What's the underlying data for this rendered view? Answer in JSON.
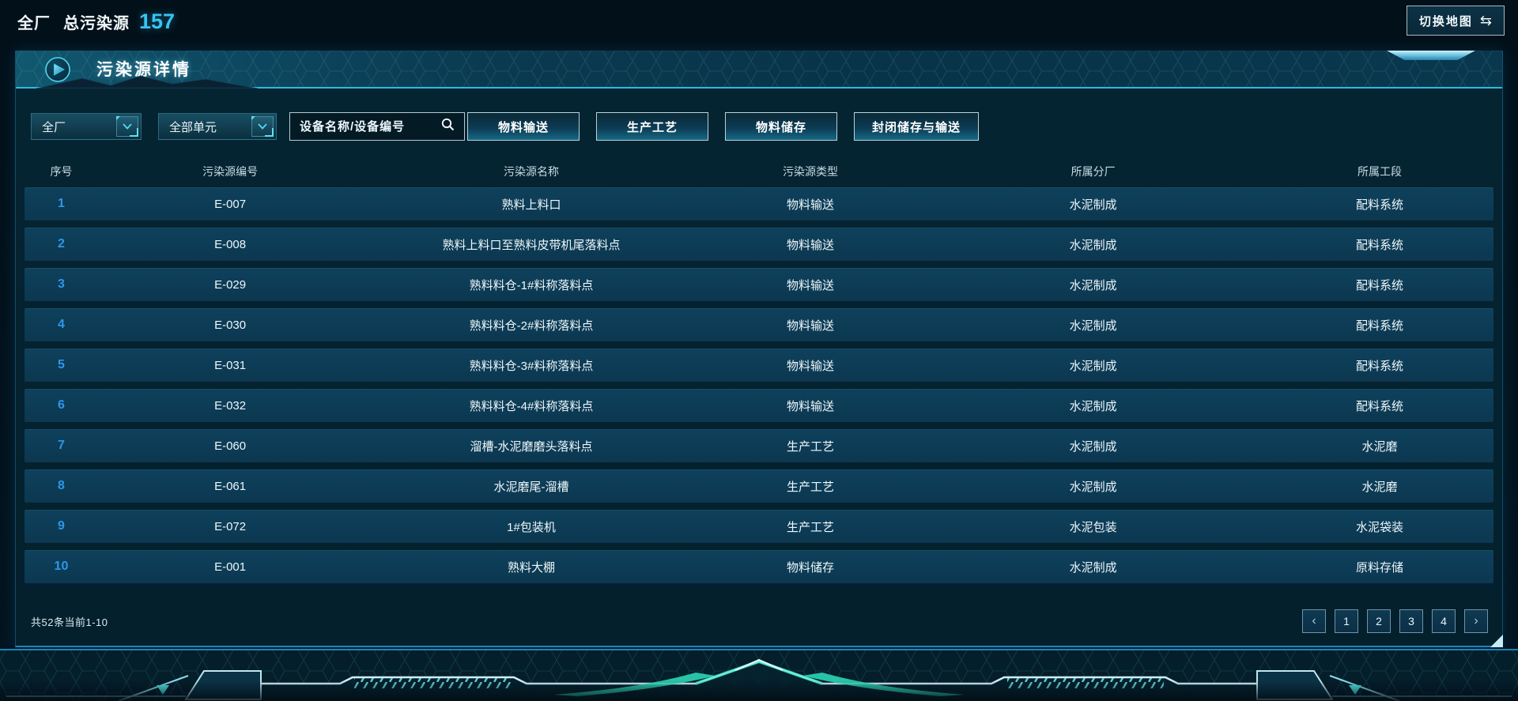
{
  "top_bar": {
    "scope_label": "全厂",
    "total_label": "总污染源",
    "total_value": "157",
    "switch_map_label": "切换地图",
    "switch_map_icon": "⇆"
  },
  "panel": {
    "title": "污染源详情",
    "filters": {
      "plant_dropdown_value": "全厂",
      "unit_dropdown_value": "全部单元",
      "search_placeholder": "设备名称/设备编号",
      "type_buttons": [
        "物料输送",
        "生产工艺",
        "物料储存",
        "封闭储存与输送"
      ]
    },
    "table": {
      "columns": [
        "序号",
        "污染源编号",
        "污染源名称",
        "污染源类型",
        "所属分厂",
        "所属工段"
      ],
      "rows": [
        [
          "1",
          "E-007",
          "熟料上料口",
          "物料输送",
          "水泥制成",
          "配料系统"
        ],
        [
          "2",
          "E-008",
          "熟料上料口至熟料皮带机尾落料点",
          "物料输送",
          "水泥制成",
          "配料系统"
        ],
        [
          "3",
          "E-029",
          "熟料料仓-1#料称落料点",
          "物料输送",
          "水泥制成",
          "配料系统"
        ],
        [
          "4",
          "E-030",
          "熟料料仓-2#料称落料点",
          "物料输送",
          "水泥制成",
          "配料系统"
        ],
        [
          "5",
          "E-031",
          "熟料料仓-3#料称落料点",
          "物料输送",
          "水泥制成",
          "配料系统"
        ],
        [
          "6",
          "E-032",
          "熟料料仓-4#料称落料点",
          "物料输送",
          "水泥制成",
          "配料系统"
        ],
        [
          "7",
          "E-060",
          "溜槽-水泥磨磨头落料点",
          "生产工艺",
          "水泥制成",
          "水泥磨"
        ],
        [
          "8",
          "E-061",
          "水泥磨尾-溜槽",
          "生产工艺",
          "水泥制成",
          "水泥磨"
        ],
        [
          "9",
          "E-072",
          "1#包装机",
          "生产工艺",
          "水泥包装",
          "水泥袋装"
        ],
        [
          "10",
          "E-001",
          "熟料大棚",
          "物料储存",
          "水泥制成",
          "原料存储"
        ]
      ]
    },
    "pagination": {
      "summary": "共52条当前1-10",
      "prev": "‹",
      "next": "›",
      "pages": [
        "1",
        "2",
        "3",
        "4"
      ]
    }
  },
  "colors": {
    "accent_cyan": "#37c4f3",
    "row_background": "#0d3a52",
    "index_blue": "#2e96e8",
    "header_line": "#2fb9dd",
    "glow_green": "#35e8c8"
  }
}
